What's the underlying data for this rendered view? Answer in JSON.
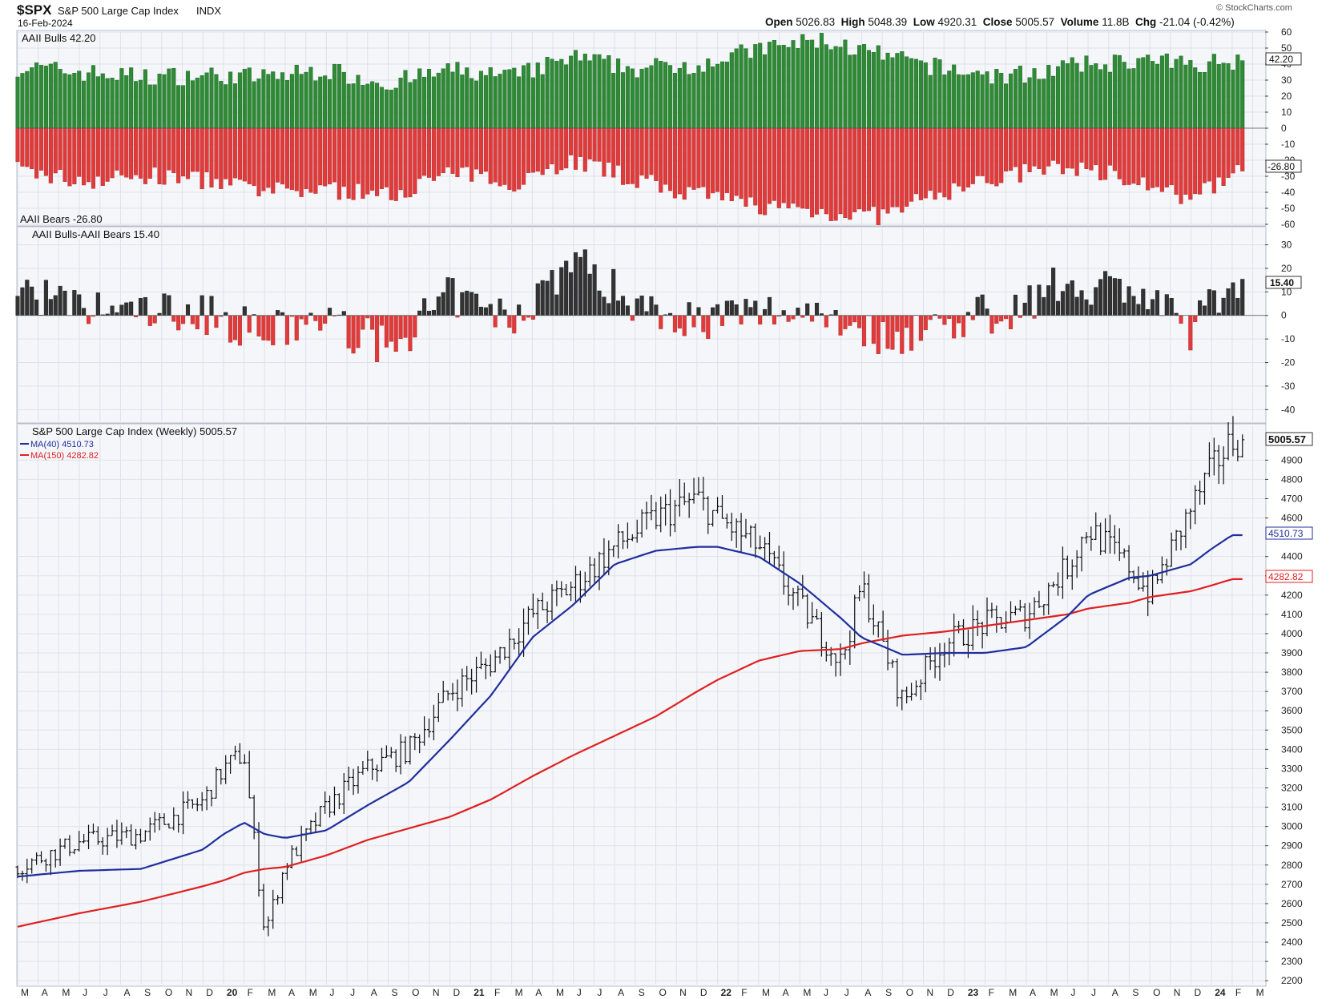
{
  "header": {
    "symbol": "$SPX",
    "name": "S&P 500 Large Cap Index",
    "exchange": "INDX",
    "date": "16-Feb-2024",
    "copyright": "© StockCharts.com",
    "quote": {
      "open_label": "Open",
      "open": "5026.83",
      "high_label": "High",
      "high": "5048.39",
      "low_label": "Low",
      "low": "4920.31",
      "close_label": "Close",
      "close": "5005.57",
      "volume_label": "Volume",
      "volume": "11.8B",
      "chg_label": "Chg",
      "chg": "-21.04 (-0.42%)"
    }
  },
  "colors": {
    "bull": "#2e8b35",
    "bear": "#e03a3a",
    "spread_pos": "#333333",
    "spread_neg": "#e03a3a",
    "ma40": "#1f2f9c",
    "ma150": "#e02020",
    "bars": "#111111",
    "panel_bg": "#f5f6fa",
    "grid": "#dde1ea"
  },
  "chart_data": [
    {
      "type": "bar",
      "panel": "sentiment",
      "label_top": "AAII Bulls 42.20",
      "label_bottom": "AAII Bears -26.80",
      "last_bulls_tag": "42.20",
      "last_bears_tag": "-26.80",
      "yticks": [
        "60",
        "50",
        "40",
        "30",
        "20",
        "10",
        "0",
        "-10",
        "-20",
        "-30",
        "-40",
        "-50",
        "-60"
      ],
      "ylim": [
        -60,
        60
      ],
      "x": [
        "2019-03",
        "2019-06",
        "2019-09",
        "2019-12",
        "2020-03",
        "2020-06",
        "2020-09",
        "2020-12",
        "2021-03",
        "2021-06",
        "2021-09",
        "2021-12",
        "2022-03",
        "2022-06",
        "2022-09",
        "2022-12",
        "2023-03",
        "2023-06",
        "2023-09",
        "2023-12",
        "2024-02"
      ],
      "series": [
        {
          "name": "AAII Bulls",
          "values": [
            38,
            35,
            32,
            33,
            32,
            36,
            28,
            36,
            32,
            44,
            37,
            40,
            49,
            55,
            45,
            37,
            32,
            38,
            42,
            40,
            42.2
          ]
        },
        {
          "name": "AAII Bears",
          "values": [
            -26,
            -33,
            -30,
            -32,
            -40,
            -38,
            -42,
            -28,
            -34,
            -20,
            -32,
            -42,
            -48,
            -52,
            -55,
            -40,
            -30,
            -24,
            -30,
            -46,
            -26.8
          ]
        }
      ]
    },
    {
      "type": "bar",
      "panel": "spread",
      "label": "AAII Bulls-AAII Bears 15.40",
      "last_tag": "15.40",
      "yticks": [
        "30",
        "20",
        "10",
        "0",
        "-10",
        "-20",
        "-30",
        "-40"
      ],
      "ylim": [
        -45,
        37
      ],
      "x": [
        "2019-03",
        "2019-06",
        "2019-09",
        "2019-12",
        "2020-03",
        "2020-06",
        "2020-09",
        "2020-12",
        "2021-03",
        "2021-06",
        "2021-09",
        "2021-12",
        "2022-03",
        "2022-06",
        "2022-09",
        "2022-12",
        "2023-03",
        "2023-06",
        "2023-09",
        "2023-12",
        "2024-02"
      ],
      "series": [
        {
          "name": "AAII Bulls-AAII Bears",
          "values": [
            12,
            2,
            2,
            1,
            -8,
            -2,
            -14,
            8,
            -2,
            24,
            5,
            -2,
            1,
            3,
            -10,
            -3,
            2,
            14,
            12,
            -6,
            15.4
          ]
        }
      ]
    },
    {
      "type": "ohlc",
      "panel": "price",
      "label": "S&P 500 Large Cap Index (Weekly) 5005.57",
      "ma": [
        {
          "name": "MA(40)",
          "label": "MA(40) 4510.73",
          "tag": "4510.73"
        },
        {
          "name": "MA(150)",
          "label": "MA(150) 4282.82",
          "tag": "4282.82"
        }
      ],
      "last_tag": "5005.57",
      "yticks": [
        "4900",
        "4800",
        "4700",
        "4600",
        "4400",
        "4300",
        "4200",
        "4100",
        "4000",
        "3900",
        "3800",
        "3700",
        "3600",
        "3500",
        "3400",
        "3300",
        "3200",
        "3100",
        "3000",
        "2900",
        "2800",
        "2700",
        "2600",
        "2500",
        "2400",
        "2300",
        "2200"
      ],
      "ylim": [
        2180,
        5080
      ],
      "x_anchor_months": [
        "2019-03",
        "2019-06",
        "2019-09",
        "2019-12",
        "2020-01",
        "2020-02",
        "2020-03",
        "2020-04",
        "2020-06",
        "2020-08",
        "2020-10",
        "2020-12",
        "2021-02",
        "2021-04",
        "2021-06",
        "2021-08",
        "2021-10",
        "2021-12",
        "2022-01",
        "2022-03",
        "2022-05",
        "2022-07",
        "2022-08",
        "2022-10",
        "2022-12",
        "2023-02",
        "2023-04",
        "2023-06",
        "2023-07",
        "2023-09",
        "2023-10",
        "2023-12",
        "2024-01",
        "2024-02"
      ],
      "close_anchor": [
        2790,
        2920,
        2960,
        3130,
        3300,
        3380,
        2450,
        2800,
        3100,
        3300,
        3400,
        3700,
        3850,
        4100,
        4250,
        4450,
        4600,
        4700,
        4600,
        4450,
        4150,
        3850,
        4250,
        3650,
        3950,
        4050,
        4100,
        4350,
        4550,
        4350,
        4200,
        4650,
        4850,
        5005.57
      ],
      "ma40_anchor": [
        2740,
        2770,
        2780,
        2880,
        2960,
        3020,
        2960,
        2940,
        2980,
        3110,
        3230,
        3450,
        3680,
        3980,
        4150,
        4360,
        4430,
        4450,
        4450,
        4400,
        4260,
        4080,
        3980,
        3890,
        3900,
        3900,
        3930,
        4090,
        4200,
        4290,
        4300,
        4360,
        4440,
        4510.73
      ],
      "ma150_anchor": [
        2480,
        2550,
        2610,
        2690,
        2720,
        2760,
        2780,
        2790,
        2850,
        2930,
        2990,
        3050,
        3140,
        3260,
        3370,
        3470,
        3570,
        3700,
        3760,
        3860,
        3910,
        3920,
        3950,
        3990,
        4010,
        4040,
        4070,
        4100,
        4130,
        4160,
        4190,
        4220,
        4250,
        4282.82
      ]
    }
  ],
  "xaxis": {
    "labels": [
      "M",
      "A",
      "M",
      "J",
      "J",
      "A",
      "S",
      "O",
      "N",
      "D",
      "20",
      "F",
      "M",
      "A",
      "M",
      "J",
      "J",
      "A",
      "S",
      "O",
      "N",
      "D",
      "21",
      "F",
      "M",
      "A",
      "M",
      "J",
      "J",
      "A",
      "S",
      "O",
      "N",
      "D",
      "22",
      "F",
      "M",
      "A",
      "M",
      "J",
      "J",
      "A",
      "S",
      "O",
      "N",
      "D",
      "23",
      "F",
      "M",
      "A",
      "M",
      "J",
      "J",
      "A",
      "S",
      "O",
      "N",
      "D",
      "24",
      "F",
      "M"
    ]
  }
}
